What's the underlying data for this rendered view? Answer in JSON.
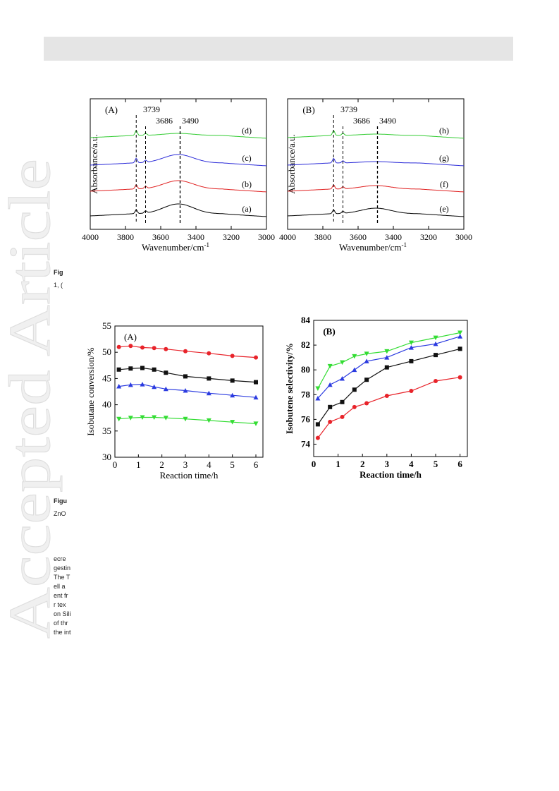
{
  "watermark": {
    "text": "Accepted Article"
  },
  "ir_figure": {
    "panels": [
      {
        "label": "(A)",
        "xlabel": "Wavenumber/cm",
        "xlabel_sup": "-1",
        "ylabel": "Absorbance/a.u.",
        "xticks": [
          "4000",
          "3800",
          "3600",
          "3400",
          "3200",
          "3000"
        ],
        "peaks": [
          "3739",
          "3686",
          "3490"
        ],
        "curves": [
          {
            "label": "(d)",
            "color": "#33cc33"
          },
          {
            "label": "(c)",
            "color": "#2a2ad8"
          },
          {
            "label": "(b)",
            "color": "#e02020"
          },
          {
            "label": "(a)",
            "color": "#000000"
          }
        ]
      },
      {
        "label": "(B)",
        "xlabel": "Wavenumber/cm",
        "xlabel_sup": "-1",
        "ylabel": "Absorbance/a.u.",
        "xticks": [
          "4000",
          "3800",
          "3600",
          "3400",
          "3200",
          "3000"
        ],
        "peaks": [
          "3739",
          "3686",
          "3490"
        ],
        "curves": [
          {
            "label": "(h)",
            "color": "#33cc33"
          },
          {
            "label": "(g)",
            "color": "#2a2ad8"
          },
          {
            "label": "(f)",
            "color": "#e02020"
          },
          {
            "label": "(e)",
            "color": "#000000"
          }
        ]
      }
    ]
  },
  "chart_data": [
    {
      "type": "line",
      "panel_label": "(A)",
      "xlabel": "Reaction time/h",
      "ylabel": "Isobutane conversion/%",
      "xlim": [
        0,
        6.3
      ],
      "ylim": [
        30,
        55
      ],
      "xticks": [
        0,
        1,
        2,
        3,
        4,
        5,
        6
      ],
      "yticks": [
        30,
        35,
        40,
        45,
        50,
        55
      ],
      "x": [
        0.17,
        0.67,
        1.17,
        1.67,
        2.17,
        3,
        4,
        5,
        6
      ],
      "series": [
        {
          "marker": "circle",
          "color": "#e8232a",
          "values": [
            51.0,
            51.2,
            50.9,
            50.8,
            50.6,
            50.2,
            49.8,
            49.3,
            49.0
          ]
        },
        {
          "marker": "square",
          "color": "#111111",
          "values": [
            46.7,
            46.9,
            47.0,
            46.7,
            46.1,
            45.4,
            45.0,
            44.6,
            44.3
          ]
        },
        {
          "marker": "triangle-up",
          "color": "#2b3be0",
          "values": [
            43.5,
            43.8,
            43.9,
            43.4,
            43.0,
            42.7,
            42.2,
            41.8,
            41.4
          ]
        },
        {
          "marker": "triangle-down",
          "color": "#33dd33",
          "values": [
            37.3,
            37.5,
            37.6,
            37.6,
            37.5,
            37.3,
            37.0,
            36.7,
            36.4
          ]
        }
      ]
    },
    {
      "type": "line",
      "panel_label": "(B)",
      "xlabel": "Reaction time/h",
      "ylabel": "Isobutene selectivity/%",
      "xlim": [
        0,
        6.3
      ],
      "ylim": [
        73,
        84
      ],
      "xticks": [
        0,
        1,
        2,
        3,
        4,
        5,
        6
      ],
      "yticks": [
        74,
        76,
        78,
        80,
        82,
        84
      ],
      "x": [
        0.17,
        0.67,
        1.17,
        1.67,
        2.17,
        3,
        4,
        5,
        6
      ],
      "series": [
        {
          "marker": "triangle-down",
          "color": "#33dd33",
          "values": [
            78.5,
            80.3,
            80.6,
            81.1,
            81.3,
            81.5,
            82.2,
            82.6,
            83.0
          ]
        },
        {
          "marker": "triangle-up",
          "color": "#2b3be0",
          "values": [
            77.7,
            78.8,
            79.3,
            80.0,
            80.7,
            81.0,
            81.8,
            82.1,
            82.7
          ]
        },
        {
          "marker": "square",
          "color": "#111111",
          "values": [
            75.6,
            77.0,
            77.4,
            78.4,
            79.2,
            80.2,
            80.7,
            81.2,
            81.7
          ]
        },
        {
          "marker": "circle",
          "color": "#e8232a",
          "values": [
            74.5,
            75.8,
            76.2,
            77.0,
            77.3,
            77.9,
            78.3,
            79.1,
            79.4
          ]
        }
      ]
    }
  ],
  "body_snippets": {
    "fig_caption_1": "Fig",
    "fig_caption_1b": "1, (",
    "fig_caption_2": "Figu",
    "fig_caption_2b": "ZnO",
    "paragraph_lines": [
      "ecre",
      "gestin",
      "The T",
      "ell a",
      "ent fr",
      "r tex",
      "on Sili",
      "of thr",
      "the int"
    ]
  }
}
